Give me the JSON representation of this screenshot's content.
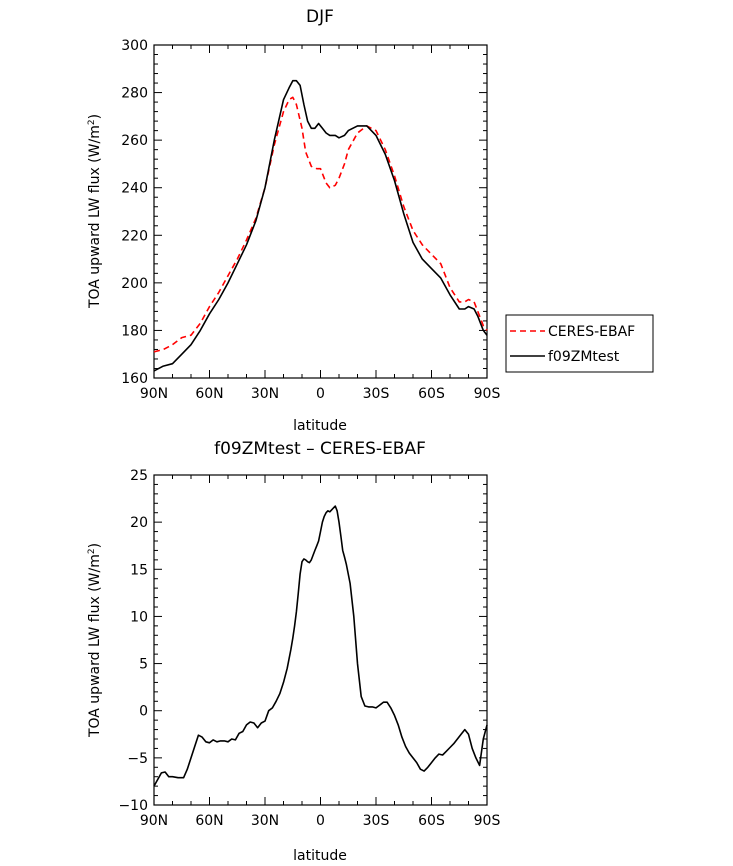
{
  "chart_data": [
    {
      "type": "line",
      "title": "DJF",
      "xlabel": "latitude",
      "ylabel": "TOA upward LW flux (W/m",
      "ylabel_sup": "2",
      "ylabel_close": ")",
      "xlim": [
        -90,
        90
      ],
      "ylim": [
        160,
        300
      ],
      "x_ticks": [
        -90,
        -60,
        -30,
        0,
        30,
        60,
        90
      ],
      "x_tick_labels": [
        "90N",
        "60N",
        "30N",
        "0",
        "30S",
        "60S",
        "90S"
      ],
      "y_ticks": [
        160,
        180,
        200,
        220,
        240,
        260,
        280,
        300
      ],
      "y_tick_labels": [
        "160",
        "180",
        "200",
        "220",
        "240",
        "260",
        "280",
        "300"
      ],
      "grid": false,
      "legend_placement": "right",
      "series": [
        {
          "name": "CERES-EBAF",
          "color": "#ff0000",
          "dash": "dashed",
          "x": [
            -90,
            -85,
            -80,
            -75,
            -70,
            -65,
            -60,
            -55,
            -50,
            -45,
            -40,
            -35,
            -30,
            -25,
            -20,
            -17,
            -15,
            -13,
            -10,
            -8,
            -5,
            -2,
            0,
            3,
            5,
            8,
            10,
            13,
            15,
            20,
            25,
            30,
            35,
            40,
            45,
            50,
            55,
            60,
            65,
            70,
            75,
            78,
            80,
            83,
            85,
            88,
            90
          ],
          "y": [
            171,
            172,
            174,
            177,
            178,
            183,
            190,
            196,
            203,
            210,
            218,
            227,
            240,
            258,
            272,
            277,
            278,
            275,
            265,
            255,
            249,
            248,
            248,
            242,
            240,
            241,
            244,
            250,
            256,
            263,
            266,
            264,
            256,
            245,
            232,
            222,
            216,
            212,
            208,
            198,
            192,
            192,
            193,
            192,
            188,
            182,
            180
          ]
        },
        {
          "name": "f09ZMtest",
          "color": "#000000",
          "dash": "solid",
          "x": [
            -90,
            -85,
            -80,
            -75,
            -70,
            -65,
            -60,
            -55,
            -50,
            -45,
            -40,
            -35,
            -30,
            -25,
            -20,
            -17,
            -15,
            -13,
            -11,
            -9,
            -7,
            -5,
            -3,
            -1,
            1,
            3,
            5,
            8,
            10,
            13,
            15,
            20,
            25,
            30,
            35,
            40,
            45,
            50,
            55,
            60,
            65,
            70,
            75,
            78,
            80,
            83,
            85,
            88,
            90
          ],
          "y": [
            163,
            165,
            166,
            170,
            174,
            180,
            187,
            193,
            200,
            208,
            216,
            226,
            240,
            260,
            277,
            282,
            285,
            285,
            283,
            275,
            268,
            265,
            265,
            267,
            265,
            263,
            262,
            262,
            261,
            262,
            264,
            266,
            266,
            262,
            254,
            243,
            229,
            217,
            210,
            206,
            202,
            195,
            189,
            189,
            190,
            189,
            186,
            180,
            178
          ]
        }
      ]
    },
    {
      "type": "line",
      "title": "f09ZMtest – CERES-EBAF",
      "xlabel": "latitude",
      "ylabel": "TOA upward LW flux (W/m",
      "ylabel_sup": "2",
      "ylabel_close": ")",
      "xlim": [
        -90,
        90
      ],
      "ylim": [
        -10,
        25
      ],
      "x_ticks": [
        -90,
        -60,
        -30,
        0,
        30,
        60,
        90
      ],
      "x_tick_labels": [
        "90N",
        "60N",
        "30N",
        "0",
        "30S",
        "60S",
        "90S"
      ],
      "y_ticks": [
        -10,
        -5,
        0,
        5,
        10,
        15,
        20,
        25
      ],
      "y_tick_labels": [
        "−10",
        "−5",
        "0",
        "5",
        "10",
        "15",
        "20",
        "25"
      ],
      "grid": false,
      "series": [
        {
          "color": "#000000",
          "dash": "solid",
          "x": [
            -90,
            -88,
            -86,
            -84,
            -82,
            -80,
            -77,
            -74,
            -72,
            -70,
            -68,
            -66,
            -64,
            -62,
            -60,
            -58,
            -56,
            -54,
            -52,
            -50,
            -48,
            -46,
            -44,
            -42,
            -40,
            -38,
            -36,
            -34,
            -32,
            -30,
            -28,
            -26,
            -24,
            -22,
            -20,
            -18,
            -16,
            -15,
            -14,
            -13,
            -12,
            -11,
            -10,
            -9,
            -8,
            -7,
            -6,
            -5,
            -4,
            -3,
            -2,
            -1,
            0,
            1,
            2,
            3,
            4,
            5,
            6,
            7,
            8,
            9,
            10,
            11,
            12,
            13,
            14,
            16,
            18,
            20,
            22,
            24,
            26,
            28,
            30,
            32,
            34,
            36,
            38,
            40,
            42,
            44,
            46,
            48,
            50,
            52,
            54,
            56,
            58,
            60,
            62,
            64,
            66,
            68,
            70,
            72,
            74,
            76,
            78,
            80,
            82,
            84,
            86,
            88,
            90
          ],
          "y": [
            -8.0,
            -7.3,
            -6.6,
            -6.5,
            -7.0,
            -7.0,
            -7.1,
            -7.1,
            -6.2,
            -5.0,
            -3.8,
            -2.6,
            -2.8,
            -3.3,
            -3.4,
            -3.1,
            -3.3,
            -3.2,
            -3.2,
            -3.3,
            -3.0,
            -3.1,
            -2.4,
            -2.2,
            -1.5,
            -1.2,
            -1.3,
            -1.8,
            -1.3,
            -1.1,
            0.0,
            0.3,
            1.0,
            1.8,
            3.0,
            4.5,
            6.5,
            7.7,
            9.0,
            10.5,
            12.5,
            14.5,
            15.8,
            16.1,
            16.0,
            15.8,
            15.7,
            16.0,
            16.5,
            17.0,
            17.5,
            18.0,
            19.0,
            20.0,
            20.6,
            21.0,
            21.2,
            21.1,
            21.3,
            21.5,
            21.7,
            21.2,
            20.0,
            18.5,
            17.0,
            16.3,
            15.5,
            13.5,
            10.0,
            5.0,
            1.5,
            0.5,
            0.4,
            0.4,
            0.3,
            0.6,
            0.9,
            0.9,
            0.3,
            -0.5,
            -1.5,
            -2.8,
            -3.8,
            -4.5,
            -5.0,
            -5.5,
            -6.2,
            -6.4,
            -6.0,
            -5.5,
            -5.0,
            -4.6,
            -4.7,
            -4.3,
            -3.9,
            -3.5,
            -3.0,
            -2.5,
            -2.0,
            -2.5,
            -4.0,
            -5.0,
            -5.8,
            -3.0,
            -1.5
          ]
        }
      ]
    }
  ]
}
